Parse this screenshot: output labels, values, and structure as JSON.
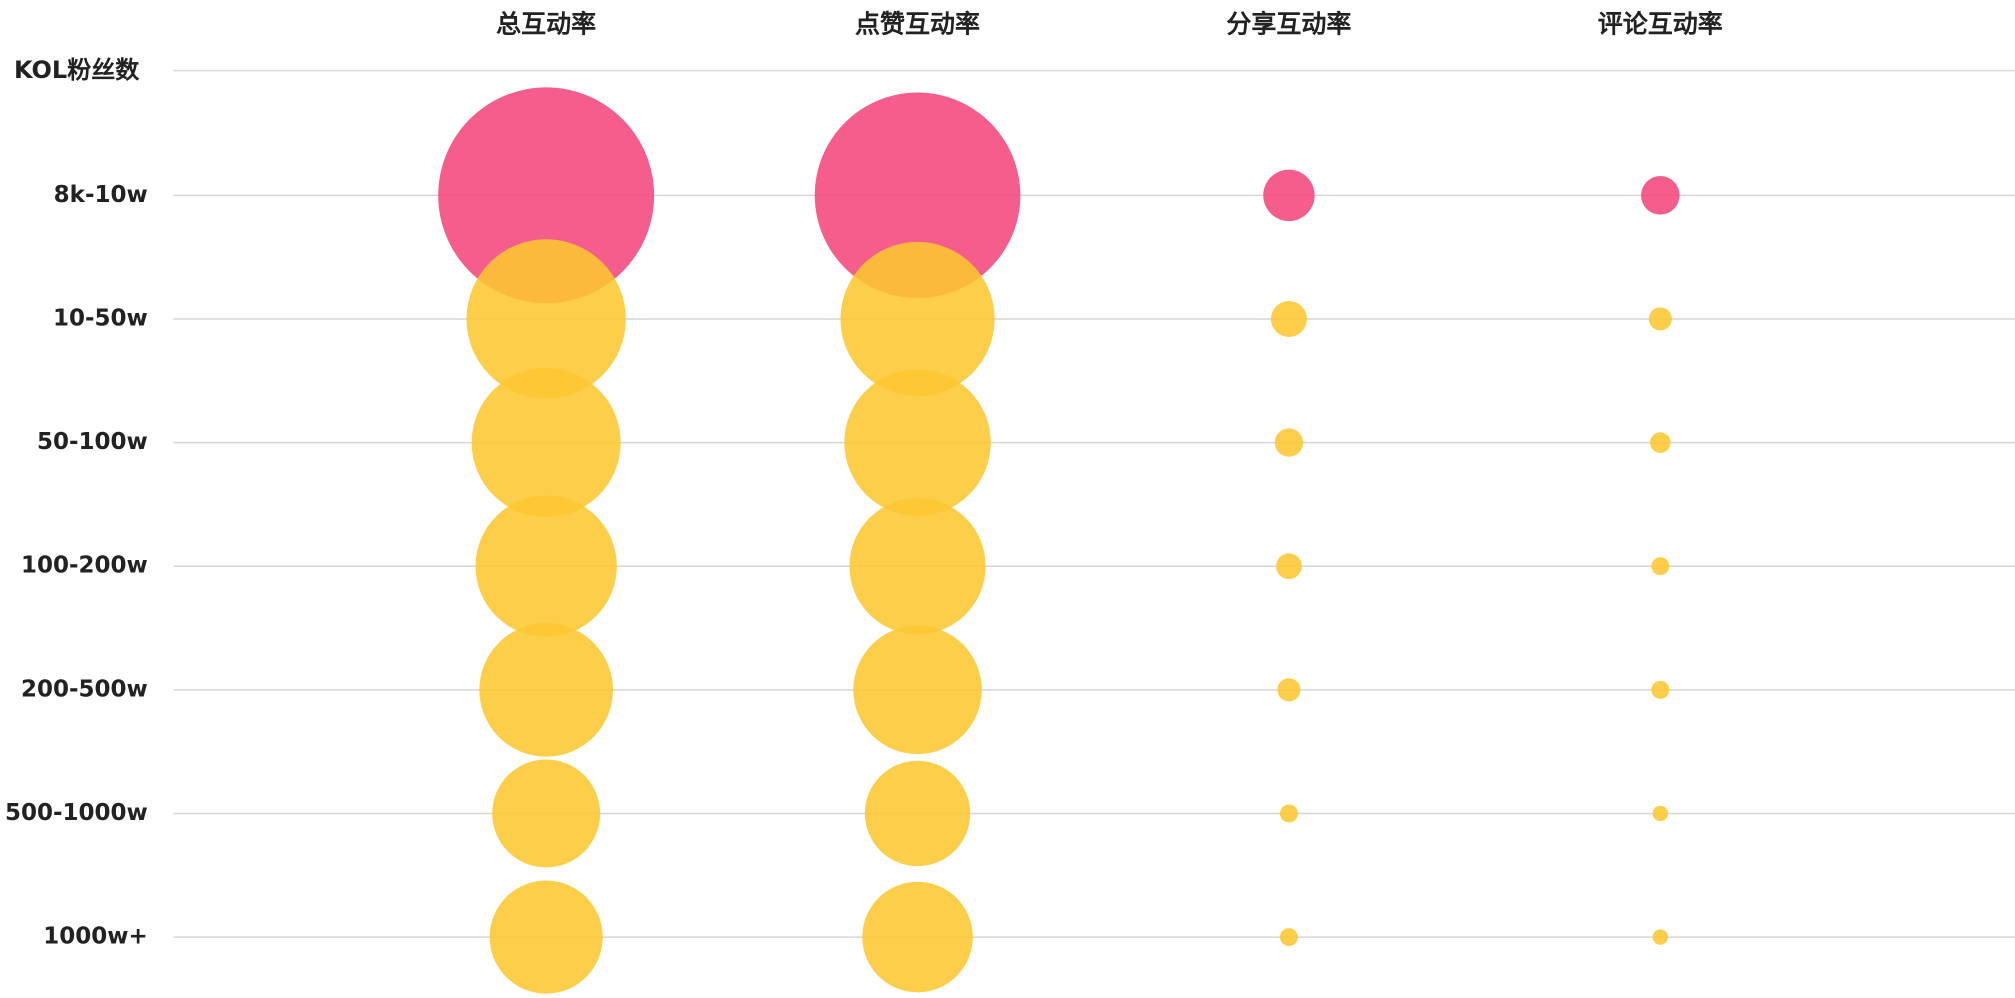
{
  "chart_data": {
    "type": "bubble",
    "y_label": "KOL粉丝数",
    "categories": [
      "8k-10w",
      "10-50w",
      "50-100w",
      "100-200w",
      "200-500w",
      "500-1000w",
      "1000w+"
    ],
    "category_colors": [
      "#f2477c",
      "#fdc731",
      "#fdc731",
      "#fdc731",
      "#fdc731",
      "#fdc731",
      "#fdc731"
    ],
    "grid": true,
    "series": [
      {
        "name": "总互动率",
        "values": [
          84,
          62,
          58,
          55,
          52,
          42,
          44
        ]
      },
      {
        "name": "点赞互动率",
        "values": [
          80,
          60,
          57,
          53,
          50,
          41,
          43
        ]
      },
      {
        "name": "分享互动率",
        "values": [
          20,
          14,
          11,
          10,
          9,
          7,
          7
        ]
      },
      {
        "name": "评论互动率",
        "values": [
          15,
          9,
          8,
          7,
          7,
          6,
          6
        ]
      }
    ]
  }
}
